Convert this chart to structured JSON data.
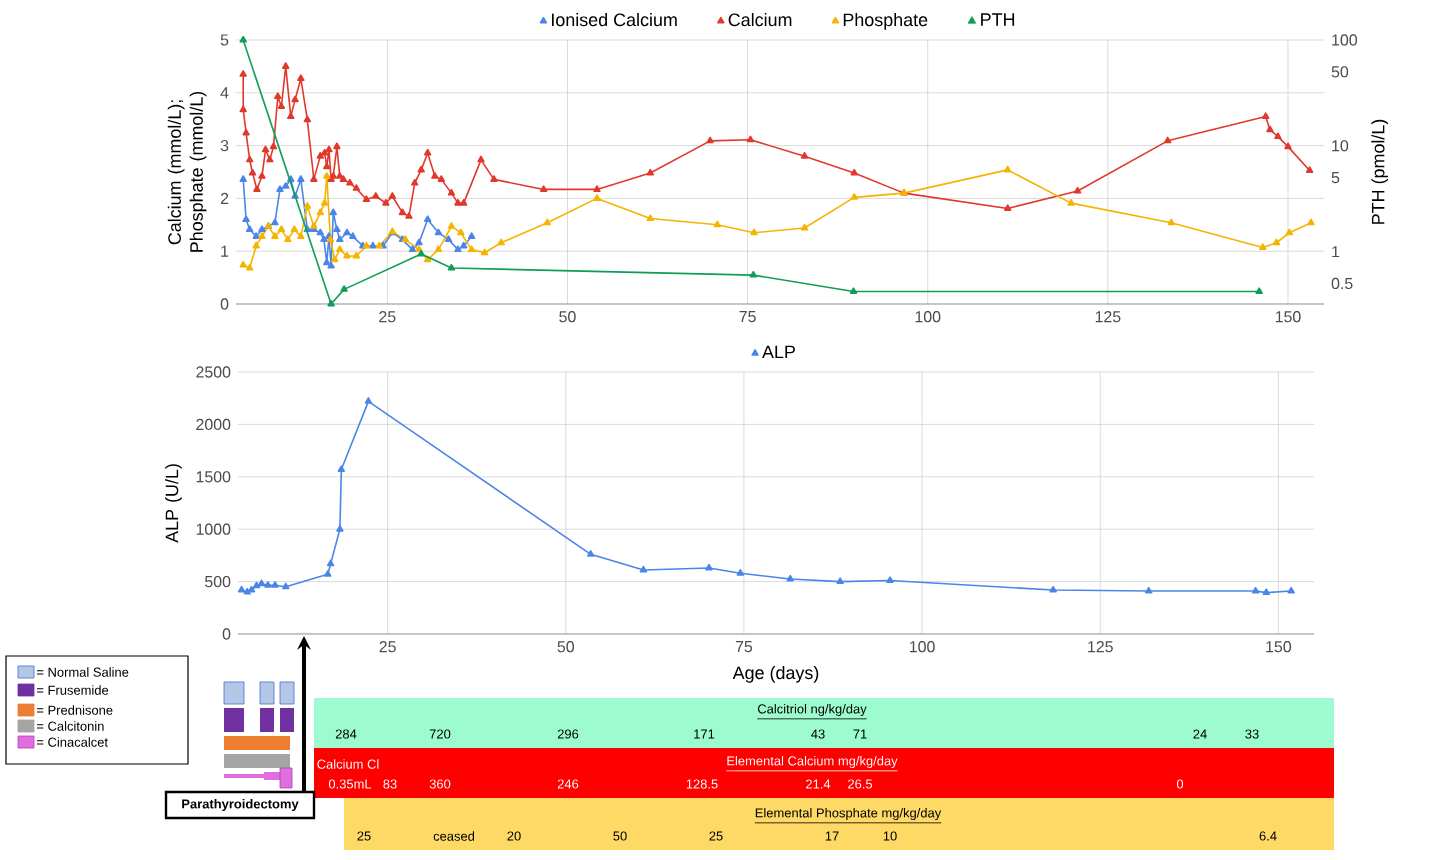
{
  "chart_data": [
    {
      "type": "line",
      "legend": "top",
      "grid": true,
      "marker": "triangle",
      "log": "y2",
      "ylabel": "Calcium (mmol/L); Phosphate (mmol/L)",
      "y2label": "PTH (pmol/L)",
      "xlim": [
        4,
        155
      ],
      "xticks": [
        25,
        50,
        75,
        100,
        125,
        150
      ],
      "ylim": [
        0,
        5
      ],
      "yticks": [
        0,
        1,
        2,
        3,
        4,
        5
      ],
      "y2lim": [
        0.32,
        100
      ],
      "y2ticks": [
        0.5,
        1,
        5,
        10,
        50,
        100
      ],
      "series": [
        {
          "name": "Ionised Calcium",
          "color": "#4a86e8",
          "x": [
            5,
            5.4,
            5.9,
            6.8,
            7.6,
            8.5,
            9.4,
            10.1,
            10.9,
            11.6,
            12.2,
            13,
            13.9,
            14.8,
            15.7,
            16.2,
            16.6,
            16.9,
            17.2,
            17.5,
            18,
            18.4,
            19.4,
            20.2,
            21.6,
            23,
            24.4,
            25.7,
            27.1,
            28.5,
            29.4,
            30.6,
            32.1,
            33.5,
            34.8,
            35.6,
            36.7
          ],
          "values": [
            2.36,
            1.6,
            1.41,
            1.28,
            1.41,
            1.47,
            1.54,
            2.17,
            2.23,
            2.36,
            2.04,
            2.36,
            1.41,
            1.41,
            1.35,
            1.22,
            0.78,
            1.28,
            0.72,
            1.73,
            1.41,
            1.22,
            1.35,
            1.28,
            1.1,
            1.1,
            1.1,
            1.35,
            1.22,
            1.03,
            1.16,
            1.6,
            1.35,
            1.22,
            1.03,
            1.1,
            1.28
          ]
        },
        {
          "name": "Calcium",
          "color": "#e0392b",
          "x": [
            5,
            5,
            5.4,
            5.9,
            6.3,
            6.9,
            7.6,
            8.1,
            8.7,
            9.2,
            9.8,
            10.3,
            10.9,
            11.6,
            12.2,
            13,
            13.9,
            14.8,
            15.7,
            16.3,
            16.6,
            16.9,
            17.2,
            17.5,
            18,
            18.4,
            18.9,
            19.8,
            20.7,
            22.1,
            23.4,
            24.8,
            25.7,
            27.1,
            28,
            28.8,
            29.7,
            30.6,
            31.6,
            32.5,
            33.9,
            34.8,
            35.6,
            38,
            39.8,
            46.7,
            54.1,
            61.5,
            69.8,
            75.4,
            82.9,
            89.8,
            96.7,
            111.1,
            120.8,
            133.3,
            146.9,
            147.5,
            148.6,
            150,
            153
          ],
          "values": [
            4.35,
            3.68,
            3.24,
            2.73,
            2.48,
            2.17,
            2.42,
            2.92,
            2.73,
            2.98,
            3.93,
            3.74,
            4.5,
            3.55,
            3.87,
            4.27,
            3.49,
            2.36,
            2.8,
            2.86,
            2.6,
            2.92,
            2.36,
            2.42,
            2.98,
            2.42,
            2.36,
            2.29,
            2.19,
            1.98,
            2.04,
            1.91,
            2.04,
            1.73,
            1.66,
            2.29,
            2.54,
            2.86,
            2.42,
            2.36,
            2.1,
            1.91,
            1.91,
            2.73,
            2.36,
            2.17,
            2.17,
            2.48,
            3.09,
            3.11,
            2.8,
            2.48,
            2.1,
            1.81,
            2.14,
            3.09,
            3.55,
            3.3,
            3.17,
            2.98,
            2.53
          ]
        },
        {
          "name": "Phosphate",
          "color": "#f4b400",
          "x": [
            5,
            5.9,
            6.8,
            7.6,
            8.5,
            9.4,
            10.3,
            11.2,
            12.1,
            13,
            13.9,
            14.8,
            15.7,
            16.3,
            16.6,
            17.1,
            17.7,
            18.4,
            19.4,
            20.7,
            22.1,
            23.9,
            25.7,
            27.5,
            29.4,
            30.6,
            32.1,
            33.9,
            35.2,
            36.7,
            38.5,
            40.8,
            47.2,
            54.1,
            61.5,
            70.8,
            75.9,
            82.9,
            89.8,
            96.7,
            111.1,
            119.9,
            133.8,
            146.5,
            148.4,
            150.2,
            153.2
          ],
          "values": [
            0.74,
            0.68,
            1.1,
            1.28,
            1.47,
            1.28,
            1.41,
            1.22,
            1.41,
            1.28,
            1.85,
            1.47,
            1.73,
            1.91,
            2.42,
            1.22,
            0.84,
            1.03,
            0.91,
            0.91,
            1.1,
            1.1,
            1.37,
            1.22,
            1.03,
            0.84,
            1.03,
            1.47,
            1.35,
            1.03,
            0.97,
            1.16,
            1.54,
            2.0,
            1.62,
            1.5,
            1.35,
            1.44,
            2.02,
            2.1,
            2.54,
            1.91,
            1.54,
            1.07,
            1.16,
            1.35,
            1.54
          ]
        },
        {
          "name": "PTH",
          "color": "#0f9d58",
          "axis": "y2",
          "x": [
            5,
            17.2,
            19,
            29.7,
            33.9,
            75.8,
            89.7,
            146
          ],
          "values": [
            100,
            0.32,
            0.44,
            0.95,
            0.7,
            0.6,
            0.42,
            0.42
          ]
        }
      ]
    },
    {
      "type": "line",
      "legend": "top",
      "grid": true,
      "marker": "triangle",
      "xlabel": "Age (days)",
      "ylabel": "ALP (U/L)",
      "xlim": [
        4,
        155
      ],
      "xticks": [
        25,
        50,
        75,
        100,
        125,
        150
      ],
      "ylim": [
        0,
        2500
      ],
      "yticks": [
        0,
        500,
        1000,
        1500,
        2000,
        2500
      ],
      "series": [
        {
          "name": "ALP",
          "color": "#4a86e8",
          "x": [
            4.5,
            5.3,
            5.9,
            6.6,
            7.3,
            8.2,
            9.2,
            10.7,
            16.6,
            17,
            18.3,
            18.5,
            22.3,
            53.5,
            60.9,
            70.1,
            74.5,
            81.5,
            88.5,
            95.5,
            118.4,
            131.8,
            146.8,
            148.3,
            151.8
          ],
          "values": [
            420,
            400,
            420,
            460,
            480,
            465,
            465,
            450,
            570,
            670,
            1000,
            1570,
            2220,
            760,
            610,
            630,
            580,
            525,
            500,
            510,
            420,
            410,
            410,
            395,
            410
          ]
        }
      ]
    },
    {
      "type": "other",
      "annotations": [
        "= Normal Saline",
        "= Frusemide",
        "= Prednisone",
        "= Calcitonin",
        "= Cinacalcet",
        "Parathyroidectomy",
        "Calcitriol ng/kg/day",
        "284",
        "720",
        "296",
        "171",
        "43",
        "71",
        "24",
        "33",
        "Calcium Cl",
        "Elemental Calcium mg/kg/day",
        "0.35mL",
        "83",
        "360",
        "246",
        "128.5",
        "21.4",
        "26.5",
        "0",
        "Elemental Phosphate mg/kg/day",
        "25",
        "ceased",
        "20",
        "50",
        "25",
        "17",
        "10",
        "6.4"
      ]
    }
  ]
}
